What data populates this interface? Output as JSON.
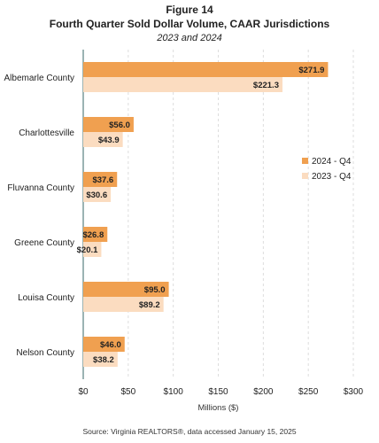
{
  "figure_label": "Figure 14",
  "source": "Source: Virginia REALTORS®, data accessed January 15, 2025",
  "colors": {
    "series_2024": "#f0a050",
    "series_2023": "#fbdcc0",
    "axis": "#7a9a9a",
    "grid": "#dddddd"
  },
  "chart_data": {
    "type": "bar",
    "orientation": "horizontal",
    "title": "Fourth Quarter Sold Dollar Volume, CAAR Jurisdictions",
    "subtitle": "2023 and 2024",
    "categories": [
      "Albemarle County",
      "Charlottesville",
      "Fluvanna County",
      "Greene County",
      "Louisa County",
      "Nelson County"
    ],
    "series": [
      {
        "name": "2024 - Q4",
        "values": [
          271.9,
          56.0,
          37.6,
          26.8,
          95.0,
          46.0
        ],
        "labels": [
          "$271.9",
          "$56.0",
          "$37.6",
          "$26.8",
          "$95.0",
          "$46.0"
        ]
      },
      {
        "name": "2023 - Q4",
        "values": [
          221.3,
          43.9,
          30.6,
          20.1,
          89.2,
          38.2
        ],
        "labels": [
          "$221.3",
          "$43.9",
          "$30.6",
          "$20.1",
          "$89.2",
          "$38.2"
        ]
      }
    ],
    "xlabel": "Millions ($)",
    "xlim": [
      0,
      300
    ],
    "xticks": [
      0,
      50,
      100,
      150,
      200,
      250,
      300
    ],
    "xtick_labels": [
      "$0",
      "$50",
      "$100",
      "$150",
      "$200",
      "$250",
      "$300"
    ],
    "grid": true,
    "legend_position": "right"
  }
}
